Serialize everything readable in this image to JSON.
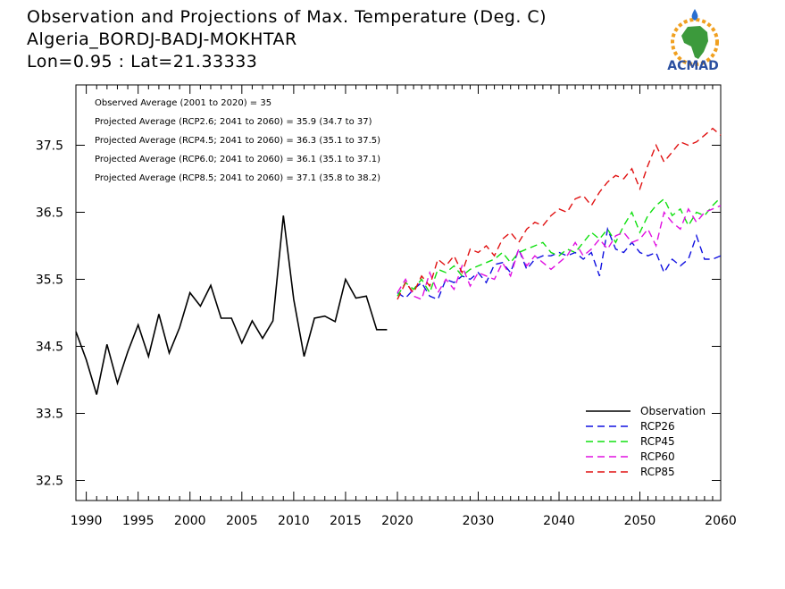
{
  "header": {
    "title": "Observation and Projections of Max. Temperature (Deg. C)",
    "station": "Algeria_BORDJ-BADJ-MOKHTAR",
    "coords": "Lon=0.95 : Lat=21.33333"
  },
  "logo": {
    "text": "ACMAD",
    "colors": {
      "ring": "#f0a020",
      "africa": "#3c9a3c",
      "drop": "#2a6fd0",
      "text": "#2a4fa0"
    }
  },
  "stats": [
    "Observed Average (2001 to 2020) = 35",
    "Projected Average (RCP2.6; 2041 to 2060) = 35.9 (34.7 to 37)",
    "Projected Average (RCP4.5; 2041 to 2060) = 36.3 (35.1 to 37.5)",
    "Projected Average (RCP6.0; 2041 to 2060) = 36.1 (35.1 to 37.1)",
    "Projected Average (RCP8.5; 2041 to 2060) = 37.1 (35.8 to 38.2)"
  ],
  "chart_data": {
    "type": "line",
    "xlim": [
      1989,
      2060
    ],
    "ylim": [
      32.2,
      38.4
    ],
    "xticks": [
      1990,
      1995,
      2000,
      2005,
      2010,
      2015,
      2020,
      2030,
      2040,
      2050,
      2060
    ],
    "xtick_labels": [
      "1990",
      "1995",
      "2000",
      "2005",
      "2010",
      "2015",
      "2020",
      "2030",
      "2040",
      "2050",
      "2060"
    ],
    "yticks": [
      32.5,
      33.5,
      34.5,
      35.5,
      36.5,
      37.5
    ],
    "ytick_labels": [
      "32.5",
      "33.5",
      "34.5",
      "35.5",
      "36.5",
      "37.5"
    ],
    "grid": false,
    "legend_position": "bottom-right",
    "series": [
      {
        "name": "Observation",
        "color": "#000000",
        "dashed": false,
        "x": [
          1989,
          1990,
          1991,
          1992,
          1993,
          1994,
          1995,
          1996,
          1997,
          1998,
          1999,
          2000,
          2001,
          2002,
          2003,
          2004,
          2005,
          2006,
          2007,
          2008,
          2009,
          2010,
          2011,
          2012,
          2013,
          2014,
          2015,
          2016,
          2017,
          2018,
          2019
        ],
        "y": [
          34.72,
          34.3,
          33.78,
          34.53,
          33.95,
          34.42,
          34.82,
          34.35,
          34.98,
          34.4,
          34.78,
          35.3,
          35.1,
          35.41,
          34.92,
          34.92,
          34.55,
          34.88,
          34.62,
          34.88,
          36.45,
          35.2,
          34.35,
          34.92,
          34.95,
          34.87,
          35.5,
          35.22,
          35.25,
          34.75,
          34.75
        ]
      },
      {
        "name": "RCP26",
        "color": "#1010e0",
        "dashed": true,
        "x": [
          2020,
          2021,
          2022,
          2023,
          2024,
          2025,
          2026,
          2027,
          2028,
          2029,
          2030,
          2031,
          2032,
          2033,
          2034,
          2035,
          2036,
          2037,
          2038,
          2039,
          2040,
          2041,
          2042,
          2043,
          2044,
          2045,
          2046,
          2047,
          2048,
          2049,
          2050,
          2051,
          2052,
          2053,
          2054,
          2055,
          2056,
          2057,
          2058,
          2059,
          2060
        ],
        "y": [
          35.3,
          35.22,
          35.35,
          35.45,
          35.25,
          35.2,
          35.5,
          35.45,
          35.55,
          35.5,
          35.6,
          35.45,
          35.72,
          35.75,
          35.6,
          35.95,
          35.65,
          35.8,
          35.85,
          35.85,
          35.9,
          35.85,
          35.9,
          35.8,
          35.9,
          35.55,
          36.25,
          35.95,
          35.9,
          36.05,
          35.9,
          35.85,
          35.9,
          35.6,
          35.8,
          35.7,
          35.8,
          36.15,
          35.8,
          35.8,
          35.85
        ]
      },
      {
        "name": "RCP45",
        "color": "#10e010",
        "dashed": true,
        "x": [
          2020,
          2021,
          2022,
          2023,
          2024,
          2025,
          2026,
          2027,
          2028,
          2029,
          2030,
          2031,
          2032,
          2033,
          2034,
          2035,
          2036,
          2037,
          2038,
          2039,
          2040,
          2041,
          2042,
          2043,
          2044,
          2045,
          2046,
          2047,
          2048,
          2049,
          2050,
          2051,
          2052,
          2053,
          2054,
          2055,
          2056,
          2057,
          2058,
          2059,
          2060
        ],
        "y": [
          35.25,
          35.45,
          35.35,
          35.5,
          35.3,
          35.65,
          35.6,
          35.7,
          35.55,
          35.65,
          35.7,
          35.75,
          35.8,
          35.9,
          35.75,
          35.9,
          35.95,
          36.0,
          36.05,
          35.9,
          35.85,
          35.95,
          35.9,
          36.05,
          36.2,
          36.1,
          36.25,
          36.05,
          36.3,
          36.5,
          36.2,
          36.45,
          36.6,
          36.7,
          36.45,
          36.55,
          36.3,
          36.5,
          36.45,
          36.6,
          36.72
        ]
      },
      {
        "name": "RCP60",
        "color": "#e010e0",
        "dashed": true,
        "x": [
          2020,
          2021,
          2022,
          2023,
          2024,
          2025,
          2026,
          2027,
          2028,
          2029,
          2030,
          2031,
          2032,
          2033,
          2034,
          2035,
          2036,
          2037,
          2038,
          2039,
          2040,
          2041,
          2042,
          2043,
          2044,
          2045,
          2046,
          2047,
          2048,
          2049,
          2050,
          2051,
          2052,
          2053,
          2054,
          2055,
          2056,
          2057,
          2058,
          2059,
          2060
        ],
        "y": [
          35.3,
          35.5,
          35.25,
          35.2,
          35.6,
          35.3,
          35.5,
          35.35,
          35.7,
          35.4,
          35.6,
          35.55,
          35.5,
          35.75,
          35.55,
          35.95,
          35.7,
          35.85,
          35.75,
          35.65,
          35.75,
          35.85,
          36.05,
          35.85,
          35.95,
          36.1,
          35.95,
          36.15,
          36.2,
          36.05,
          36.1,
          36.25,
          36.0,
          36.5,
          36.35,
          36.25,
          36.55,
          36.35,
          36.5,
          36.55,
          36.6
        ]
      },
      {
        "name": "RCP85",
        "color": "#e01010",
        "dashed": true,
        "x": [
          2020,
          2021,
          2022,
          2023,
          2024,
          2025,
          2026,
          2027,
          2028,
          2029,
          2030,
          2031,
          2032,
          2033,
          2034,
          2035,
          2036,
          2037,
          2038,
          2039,
          2040,
          2041,
          2042,
          2043,
          2044,
          2045,
          2046,
          2047,
          2048,
          2049,
          2050,
          2051,
          2052,
          2053,
          2054,
          2055,
          2056,
          2057,
          2058,
          2059,
          2060
        ],
        "y": [
          35.2,
          35.45,
          35.3,
          35.55,
          35.4,
          35.8,
          35.7,
          35.85,
          35.6,
          35.95,
          35.9,
          36.0,
          35.85,
          36.1,
          36.2,
          36.05,
          36.25,
          36.35,
          36.3,
          36.45,
          36.55,
          36.5,
          36.7,
          36.75,
          36.6,
          36.8,
          36.95,
          37.05,
          37.0,
          37.15,
          36.85,
          37.2,
          37.5,
          37.25,
          37.4,
          37.55,
          37.5,
          37.55,
          37.65,
          37.75,
          37.65
        ]
      }
    ]
  }
}
